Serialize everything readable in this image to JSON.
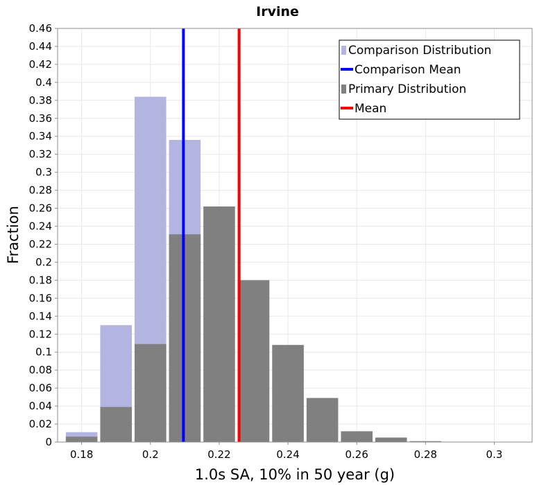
{
  "chart_data": {
    "type": "bar",
    "title": "Irvine",
    "xlabel": "1.0s SA, 10% in 50 year (g)",
    "ylabel": "Fraction",
    "xlim": [
      0.173,
      0.311
    ],
    "ylim": [
      0,
      0.46
    ],
    "bin_width": 0.01,
    "x_ticks": [
      "0.18",
      "0.2",
      "0.22",
      "0.24",
      "0.26",
      "0.28",
      "0.3"
    ],
    "y_ticks": [
      "0",
      "0.02",
      "0.04",
      "0.06",
      "0.08",
      "0.1",
      "0.12",
      "0.14",
      "0.16",
      "0.18",
      "0.2",
      "0.22",
      "0.24",
      "0.26",
      "0.28",
      "0.3",
      "0.32",
      "0.34",
      "0.36",
      "0.38",
      "0.4",
      "0.42",
      "0.44",
      "0.46"
    ],
    "grid": true,
    "legend_position": "top-right",
    "series": [
      {
        "name": "Comparison Distribution",
        "kind": "histogram",
        "color": "#b4b4e1",
        "bin_centers": [
          0.18,
          0.19,
          0.2,
          0.21
        ],
        "values": [
          0.011,
          0.13,
          0.384,
          0.336
        ]
      },
      {
        "name": "Primary Distribution",
        "kind": "histogram",
        "color": "#808080",
        "bin_centers": [
          0.18,
          0.19,
          0.2,
          0.21,
          0.22,
          0.23,
          0.24,
          0.25,
          0.26,
          0.27,
          0.28
        ],
        "values": [
          0.006,
          0.039,
          0.109,
          0.231,
          0.262,
          0.18,
          0.108,
          0.049,
          0.012,
          0.005,
          0.001
        ]
      },
      {
        "name": "Comparison Mean",
        "kind": "vline",
        "color": "#0000ff",
        "x": 0.2096
      },
      {
        "name": "Mean",
        "kind": "vline",
        "color": "#ff0000",
        "x": 0.2258
      }
    ],
    "legend": [
      {
        "label": "Comparison Distribution",
        "color": "#b4b4e1",
        "symbol": "box"
      },
      {
        "label": "Comparison Mean",
        "color": "#0000ff",
        "symbol": "line"
      },
      {
        "label": "Primary Distribution",
        "color": "#808080",
        "symbol": "box"
      },
      {
        "label": "Mean",
        "color": "#ff0000",
        "symbol": "line"
      }
    ]
  }
}
